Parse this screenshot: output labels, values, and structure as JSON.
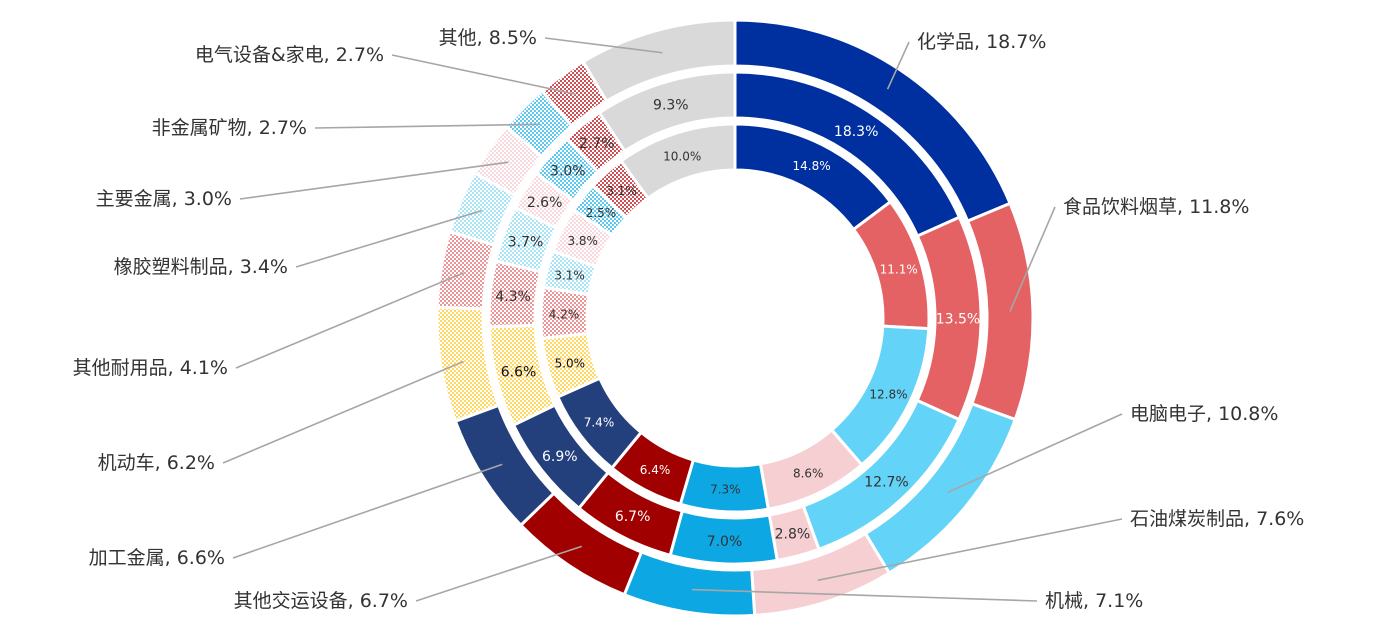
{
  "chart_data": {
    "type": "donut",
    "rings": [
      "outer",
      "middle",
      "inner"
    ],
    "categories": [
      "化学品",
      "食品饮料烟草",
      "电脑电子",
      "石油煤炭制品",
      "机械",
      "其他交运设备",
      "加工金属",
      "机动车",
      "其他耐用品",
      "橡胶塑料制品",
      "主要金属",
      "非金属矿物",
      "电气设备&家电",
      "其他"
    ],
    "series": [
      {
        "ring": "outer",
        "values": [
          18.7,
          11.8,
          10.8,
          7.6,
          7.1,
          6.7,
          6.6,
          6.2,
          4.1,
          3.4,
          3.0,
          2.7,
          2.7,
          8.5
        ]
      },
      {
        "ring": "middle",
        "values": [
          18.3,
          13.5,
          12.7,
          2.8,
          7.0,
          6.7,
          6.9,
          6.6,
          4.3,
          3.7,
          2.6,
          3.0,
          2.7,
          9.3
        ]
      },
      {
        "ring": "inner",
        "values": [
          14.8,
          11.1,
          12.8,
          8.6,
          7.3,
          6.4,
          7.4,
          5.0,
          4.2,
          3.1,
          3.8,
          2.5,
          3.1,
          10.0
        ]
      }
    ],
    "outer_labels": [
      "化学品, 18.7%",
      "食品饮料烟草, 11.8%",
      "电脑电子, 10.8%",
      "石油煤炭制品, 7.6%",
      "机械, 7.1%",
      "其他交运设备, 6.7%",
      "加工金属, 6.6%",
      "机动车, 6.2%",
      "其他耐用品, 4.1%",
      "橡胶塑料制品, 3.4%",
      "主要金属, 3.0%",
      "非金属矿物, 2.7%",
      "电气设备&家电, 2.7%",
      "其他, 8.5%"
    ],
    "middle_labels": [
      "18.3%",
      "13.5%",
      "12.7%",
      "2.8%",
      "7.0%",
      "6.7%",
      "6.9%",
      "6.6%",
      "4.3%",
      "3.7%",
      "2.6%",
      "3.0%",
      "2.7%",
      "9.3%"
    ],
    "inner_labels": [
      "14.8%",
      "11.1%",
      "12.8%",
      "8.6%",
      "7.3%",
      "6.4%",
      "7.4%",
      "5.0%",
      "4.2%",
      "3.1%",
      "3.8%",
      "2.5%",
      "3.1%",
      "10.0%"
    ],
    "colors": [
      "#002fa0",
      "#e46264",
      "#63d3f7",
      "#f6cfd2",
      "#0da7e4",
      "#a00000",
      "#233f7c",
      "#ffd761",
      "#ec9598",
      "#a9e4f6",
      "#f7d9de",
      "#5cc7ef",
      "#cf5054",
      "#d9d9d9"
    ],
    "patterns": [
      "solid",
      "solid",
      "solid",
      "solid",
      "solid",
      "solid",
      "solid",
      "dots",
      "dots",
      "dots",
      "dots",
      "dots",
      "dots",
      "solid"
    ],
    "value_text_colors": [
      "#ffffff",
      "#ffffff",
      "#333333",
      "#333333",
      "#333333",
      "#ffffff",
      "#ffffff",
      "#111111",
      "#333333",
      "#333333",
      "#333333",
      "#333333",
      "#333333",
      "#333333"
    ],
    "label_color": "#333333",
    "leader_line_color": "#a6a6a6"
  }
}
